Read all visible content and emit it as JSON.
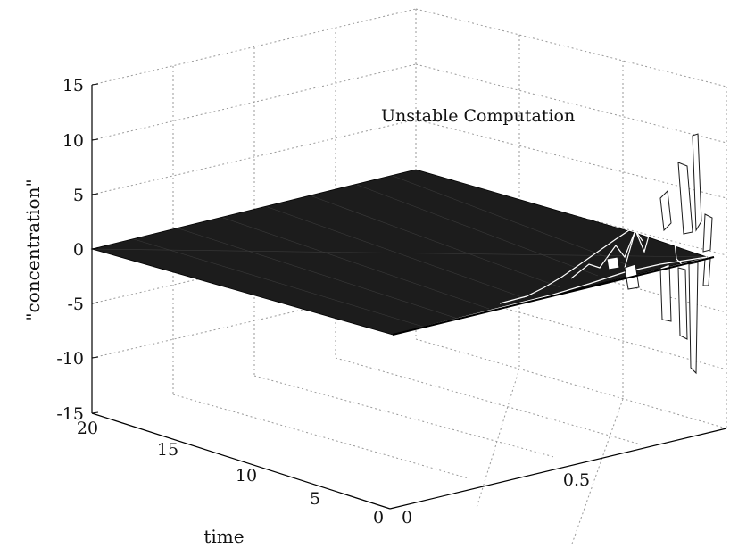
{
  "chart_data": {
    "type": "surface",
    "title": "",
    "annotation": "Unstable Computation",
    "xlabel": "",
    "ylabel": "time",
    "zlabel": "\"concentration\"",
    "xlim": [
      0,
      1
    ],
    "ylim": [
      0,
      20
    ],
    "zlim": [
      -15,
      15
    ],
    "x_ticks": [
      "0",
      "0.5"
    ],
    "y_ticks": [
      "0",
      "5",
      "10",
      "15",
      "20"
    ],
    "z_ticks": [
      "15",
      "10",
      "5",
      "0",
      "-5",
      "-10",
      "-15"
    ],
    "grid": true,
    "surface": {
      "description_values": {
        "flat_region_value": 0,
        "edge_oscillation_x": [
          0.75,
          0.8,
          0.85,
          0.9,
          0.95,
          1.0
        ],
        "edge_oscillation_peak_z": [
          1,
          2,
          4,
          6,
          10,
          0
        ],
        "edge_oscillation_trough_z": [
          -1,
          -2,
          -4,
          -7,
          -11,
          0
        ]
      }
    },
    "colors": {
      "surface_fill": "#1a1a1a",
      "mesh_line": "#ffffff",
      "axes": "#000000",
      "grid": "#9a9a9a"
    }
  }
}
